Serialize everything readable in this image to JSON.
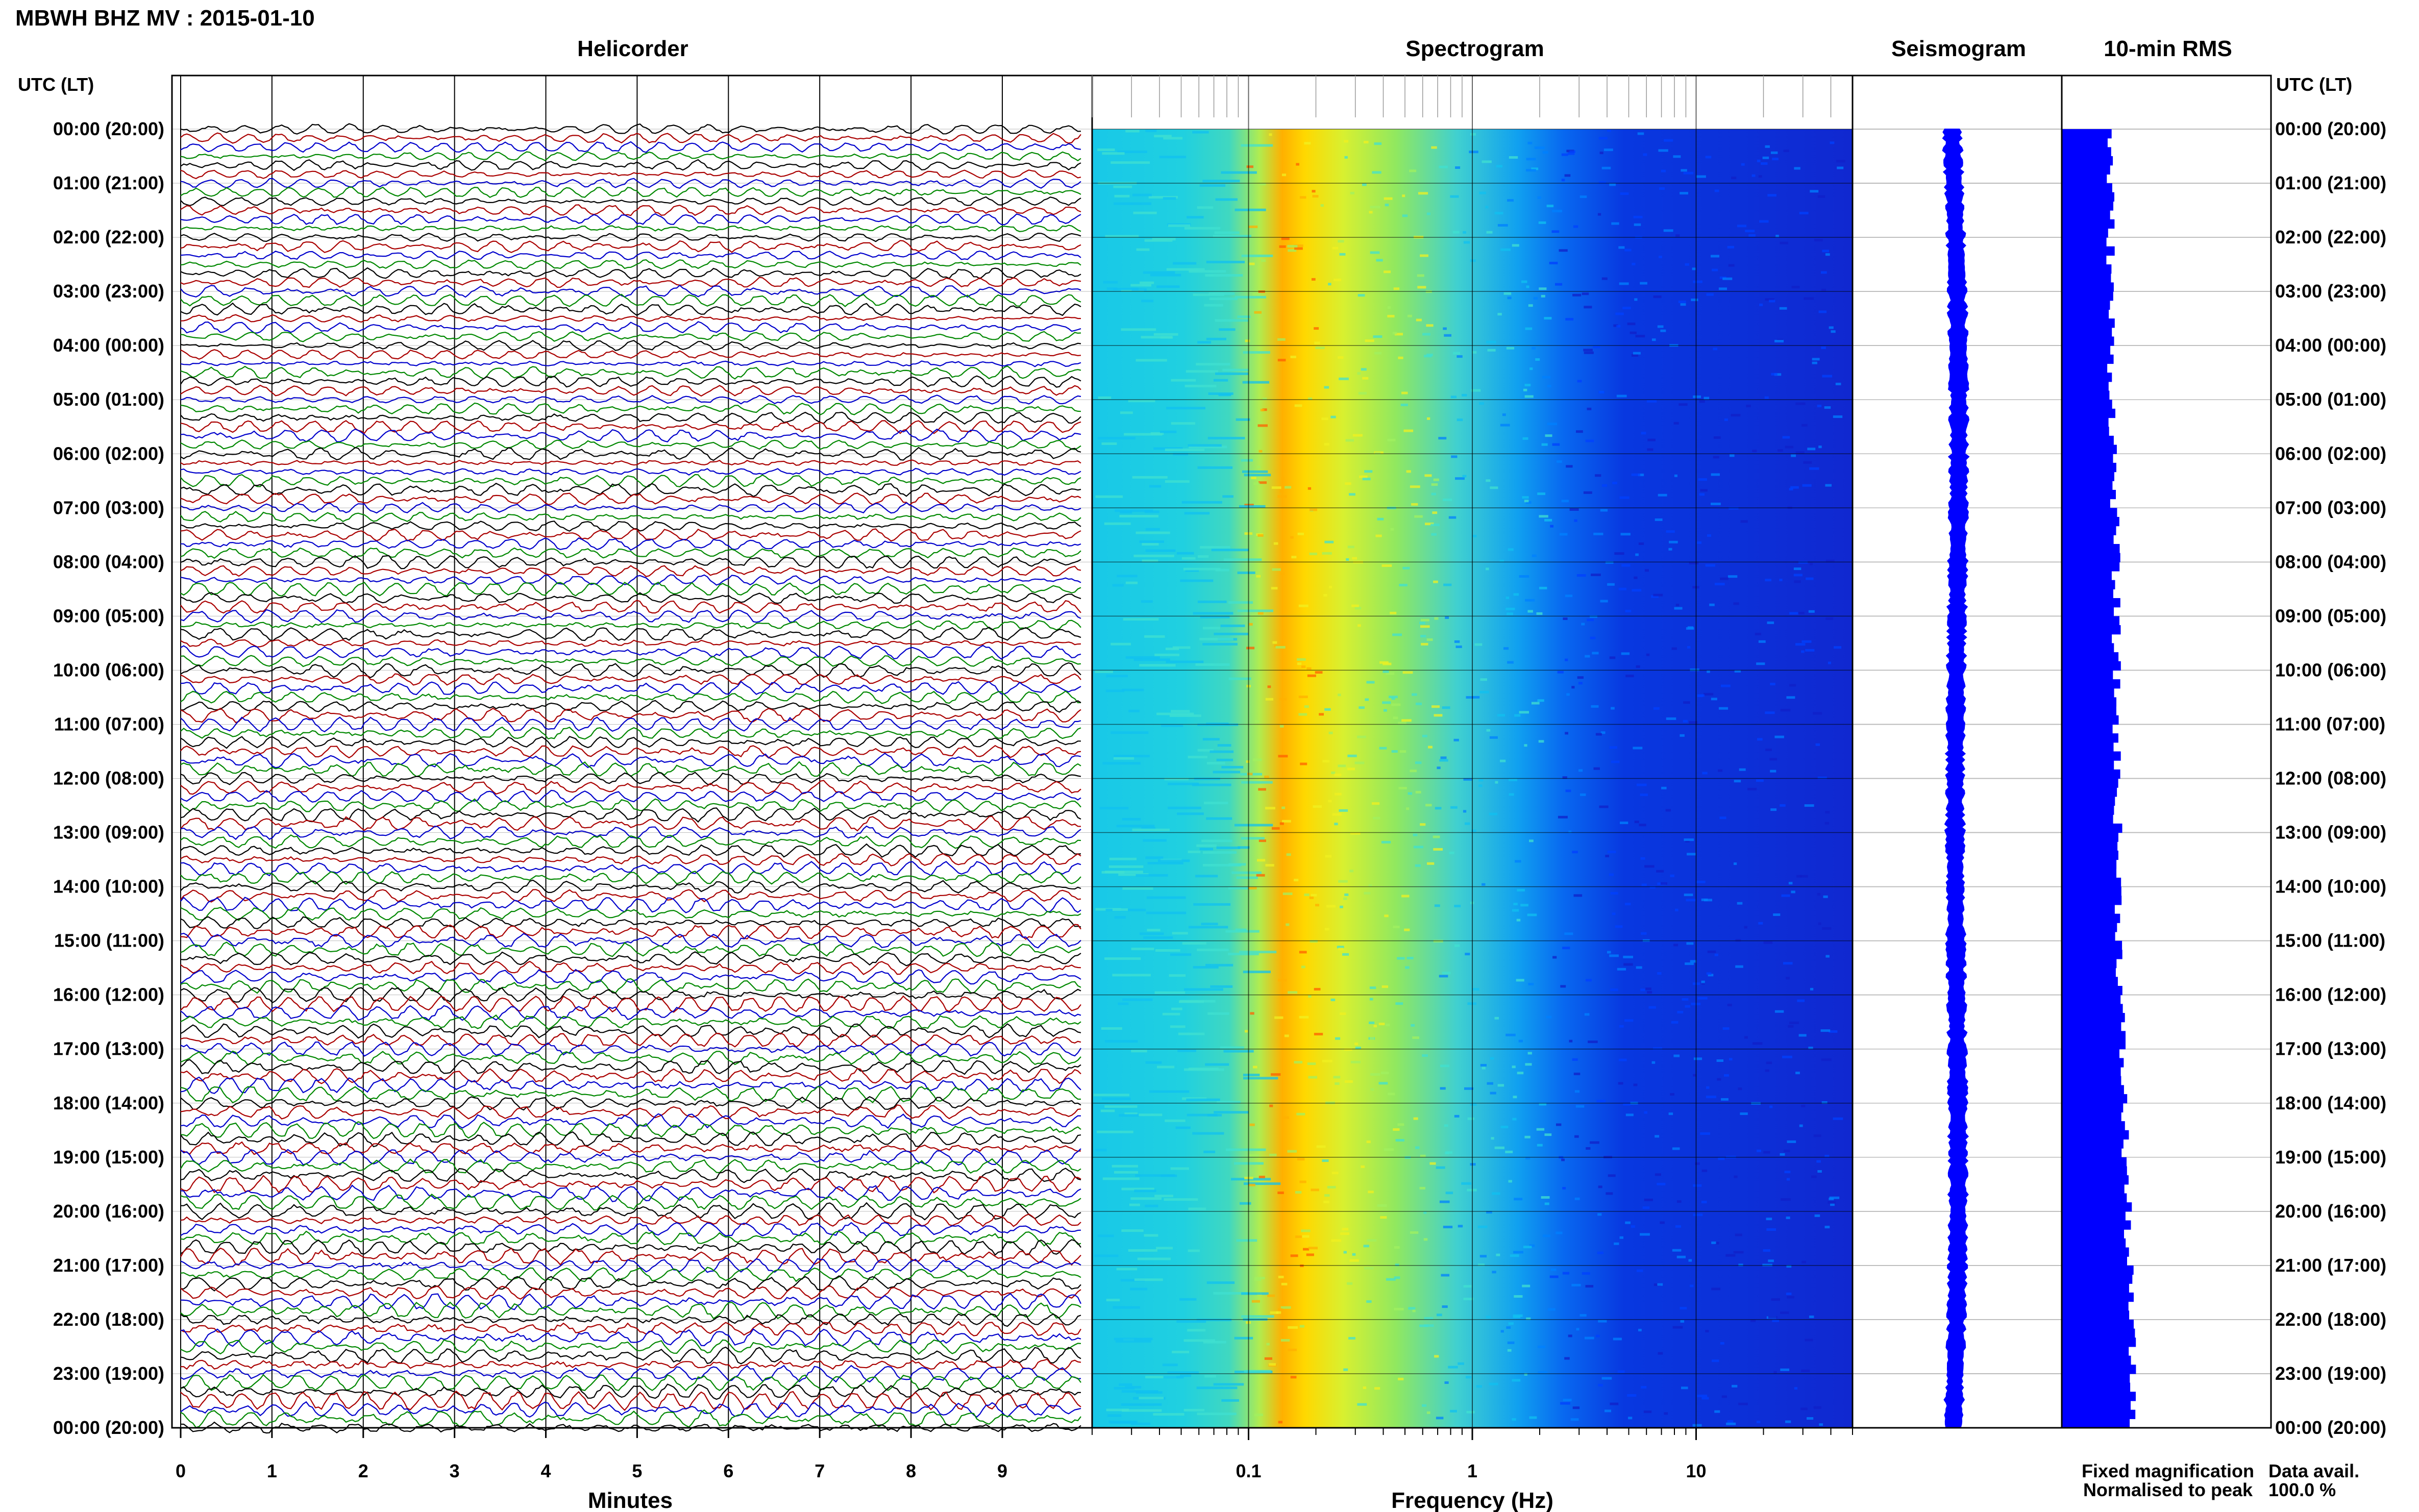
{
  "header": {
    "title": "MBWH BHZ MV : 2015-01-10"
  },
  "panels": {
    "helicorder": "Helicorder",
    "spectrogram": "Spectrogram",
    "seismogram": "Seismogram",
    "rms": "10-min RMS"
  },
  "time_axis": {
    "label": "UTC (LT)",
    "ticks": [
      "00:00 (20:00)",
      "01:00 (21:00)",
      "02:00 (22:00)",
      "03:00 (23:00)",
      "04:00 (00:00)",
      "05:00 (01:00)",
      "06:00 (02:00)",
      "07:00 (03:00)",
      "08:00 (04:00)",
      "09:00 (05:00)",
      "10:00 (06:00)",
      "11:00 (07:00)",
      "12:00 (08:00)",
      "13:00 (09:00)",
      "14:00 (10:00)",
      "15:00 (11:00)",
      "16:00 (12:00)",
      "17:00 (13:00)",
      "18:00 (14:00)",
      "19:00 (15:00)",
      "20:00 (16:00)",
      "21:00 (17:00)",
      "22:00 (18:00)",
      "23:00 (19:00)",
      "00:00 (20:00)"
    ]
  },
  "helicorder_axis": {
    "label": "Minutes",
    "ticks": [
      "0",
      "1",
      "2",
      "3",
      "4",
      "5",
      "6",
      "7",
      "8",
      "9"
    ]
  },
  "spectrogram_axis": {
    "label": "Frequency (Hz)",
    "ticks": [
      "0.1",
      "1",
      "10"
    ]
  },
  "legend": {
    "fixed": "Fixed magnification",
    "normalised": "Normalised to peak",
    "fixed_color": "#0000ff",
    "normalised_color": "#ff0000"
  },
  "availability": {
    "label": "Data avail.",
    "value": "100.0 %"
  },
  "chart_data": [
    {
      "type": "line",
      "panel": "helicorder",
      "x_range_minutes": [
        0,
        10
      ],
      "rows_per_hour": 6,
      "hours": 24,
      "trace_colors": [
        "#000000",
        "#aa0000",
        "#0000cc",
        "#008800"
      ]
    },
    {
      "type": "heatmap",
      "panel": "spectrogram",
      "x_scale": "log",
      "x_range_hz": [
        0.02,
        50
      ],
      "peak_band_hz": [
        0.15,
        0.25
      ],
      "colormap": [
        "#1020c8",
        "#0040ff",
        "#0080ff",
        "#10c0f0",
        "#40e0d0",
        "#a0f060",
        "#f0f020",
        "#ffb000",
        "#ff6000"
      ]
    },
    {
      "type": "bar",
      "panel": "10-min RMS",
      "hour_step": 4,
      "hours": [
        0,
        4,
        8,
        12,
        16,
        20,
        24
      ],
      "values": [
        0.42,
        0.43,
        0.47,
        0.48,
        0.51,
        0.57,
        0.63
      ],
      "color": "#0000ff"
    }
  ]
}
